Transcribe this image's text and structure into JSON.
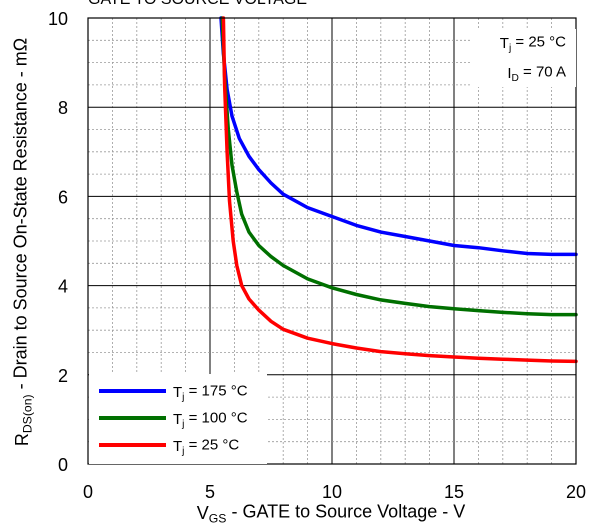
{
  "chart_data": {
    "type": "line",
    "title": "GATE TO SOURCE VOLTAGE",
    "xlabel": {
      "sym": "V",
      "sub": "GS",
      "rest": " - GATE to Source Voltage - V"
    },
    "ylabel": {
      "sym": "R",
      "sub": "DS(on)",
      "rest": " - Drain to Source On-State Resistance - mΩ"
    },
    "xlim": [
      0,
      20
    ],
    "ylim": [
      0,
      10
    ],
    "xticks": [
      0,
      5,
      10,
      15,
      20
    ],
    "yticks": [
      0,
      2,
      4,
      6,
      8,
      10
    ],
    "x_minor_step": 1,
    "y_minor_step": 0.5,
    "grid": true,
    "legend_position": "bottom-left",
    "annotations": [
      {
        "sym": "T",
        "sub": "j",
        "rest": " = 25 °C"
      },
      {
        "sym": "I",
        "sub": "D",
        "rest": " = 70 A"
      }
    ],
    "series": [
      {
        "legend": {
          "sym": "T",
          "sub": "j",
          "rest": " = 175 °C"
        },
        "color": "#0000ff",
        "x": [
          5.45,
          5.55,
          5.7,
          5.9,
          6.2,
          6.6,
          7.0,
          7.5,
          8.0,
          9.0,
          10.0,
          11.0,
          12.0,
          13.0,
          14.0,
          15.0,
          16.0,
          17.0,
          18.0,
          19.0,
          20.0
        ],
        "y": [
          10.0,
          9.2,
          8.4,
          7.8,
          7.3,
          6.9,
          6.6,
          6.3,
          6.05,
          5.75,
          5.55,
          5.35,
          5.2,
          5.1,
          5.0,
          4.9,
          4.85,
          4.78,
          4.72,
          4.7,
          4.7
        ]
      },
      {
        "legend": {
          "sym": "T",
          "sub": "j",
          "rest": " = 100 °C"
        },
        "color": "#007000",
        "x": [
          5.5,
          5.6,
          5.75,
          5.9,
          6.1,
          6.3,
          6.6,
          7.0,
          7.5,
          8.0,
          9.0,
          10.0,
          11.0,
          12.0,
          13.0,
          14.0,
          15.0,
          16.0,
          17.0,
          18.0,
          19.0,
          20.0
        ],
        "y": [
          10.0,
          8.7,
          7.5,
          6.7,
          6.1,
          5.6,
          5.2,
          4.9,
          4.65,
          4.45,
          4.15,
          3.95,
          3.8,
          3.68,
          3.6,
          3.53,
          3.48,
          3.44,
          3.4,
          3.37,
          3.35,
          3.35
        ]
      },
      {
        "legend": {
          "sym": "T",
          "sub": "j",
          "rest": " = 25 °C"
        },
        "color": "#ff0000",
        "x": [
          5.55,
          5.6,
          5.7,
          5.8,
          5.95,
          6.1,
          6.3,
          6.6,
          7.0,
          7.5,
          8.0,
          9.0,
          10.0,
          11.0,
          12.0,
          13.0,
          14.0,
          15.0,
          16.0,
          17.0,
          18.0,
          19.0,
          20.0
        ],
        "y": [
          10.0,
          8.5,
          7.0,
          5.9,
          5.0,
          4.45,
          4.0,
          3.7,
          3.45,
          3.2,
          3.02,
          2.82,
          2.7,
          2.6,
          2.52,
          2.47,
          2.43,
          2.4,
          2.37,
          2.35,
          2.33,
          2.31,
          2.3
        ]
      }
    ]
  }
}
